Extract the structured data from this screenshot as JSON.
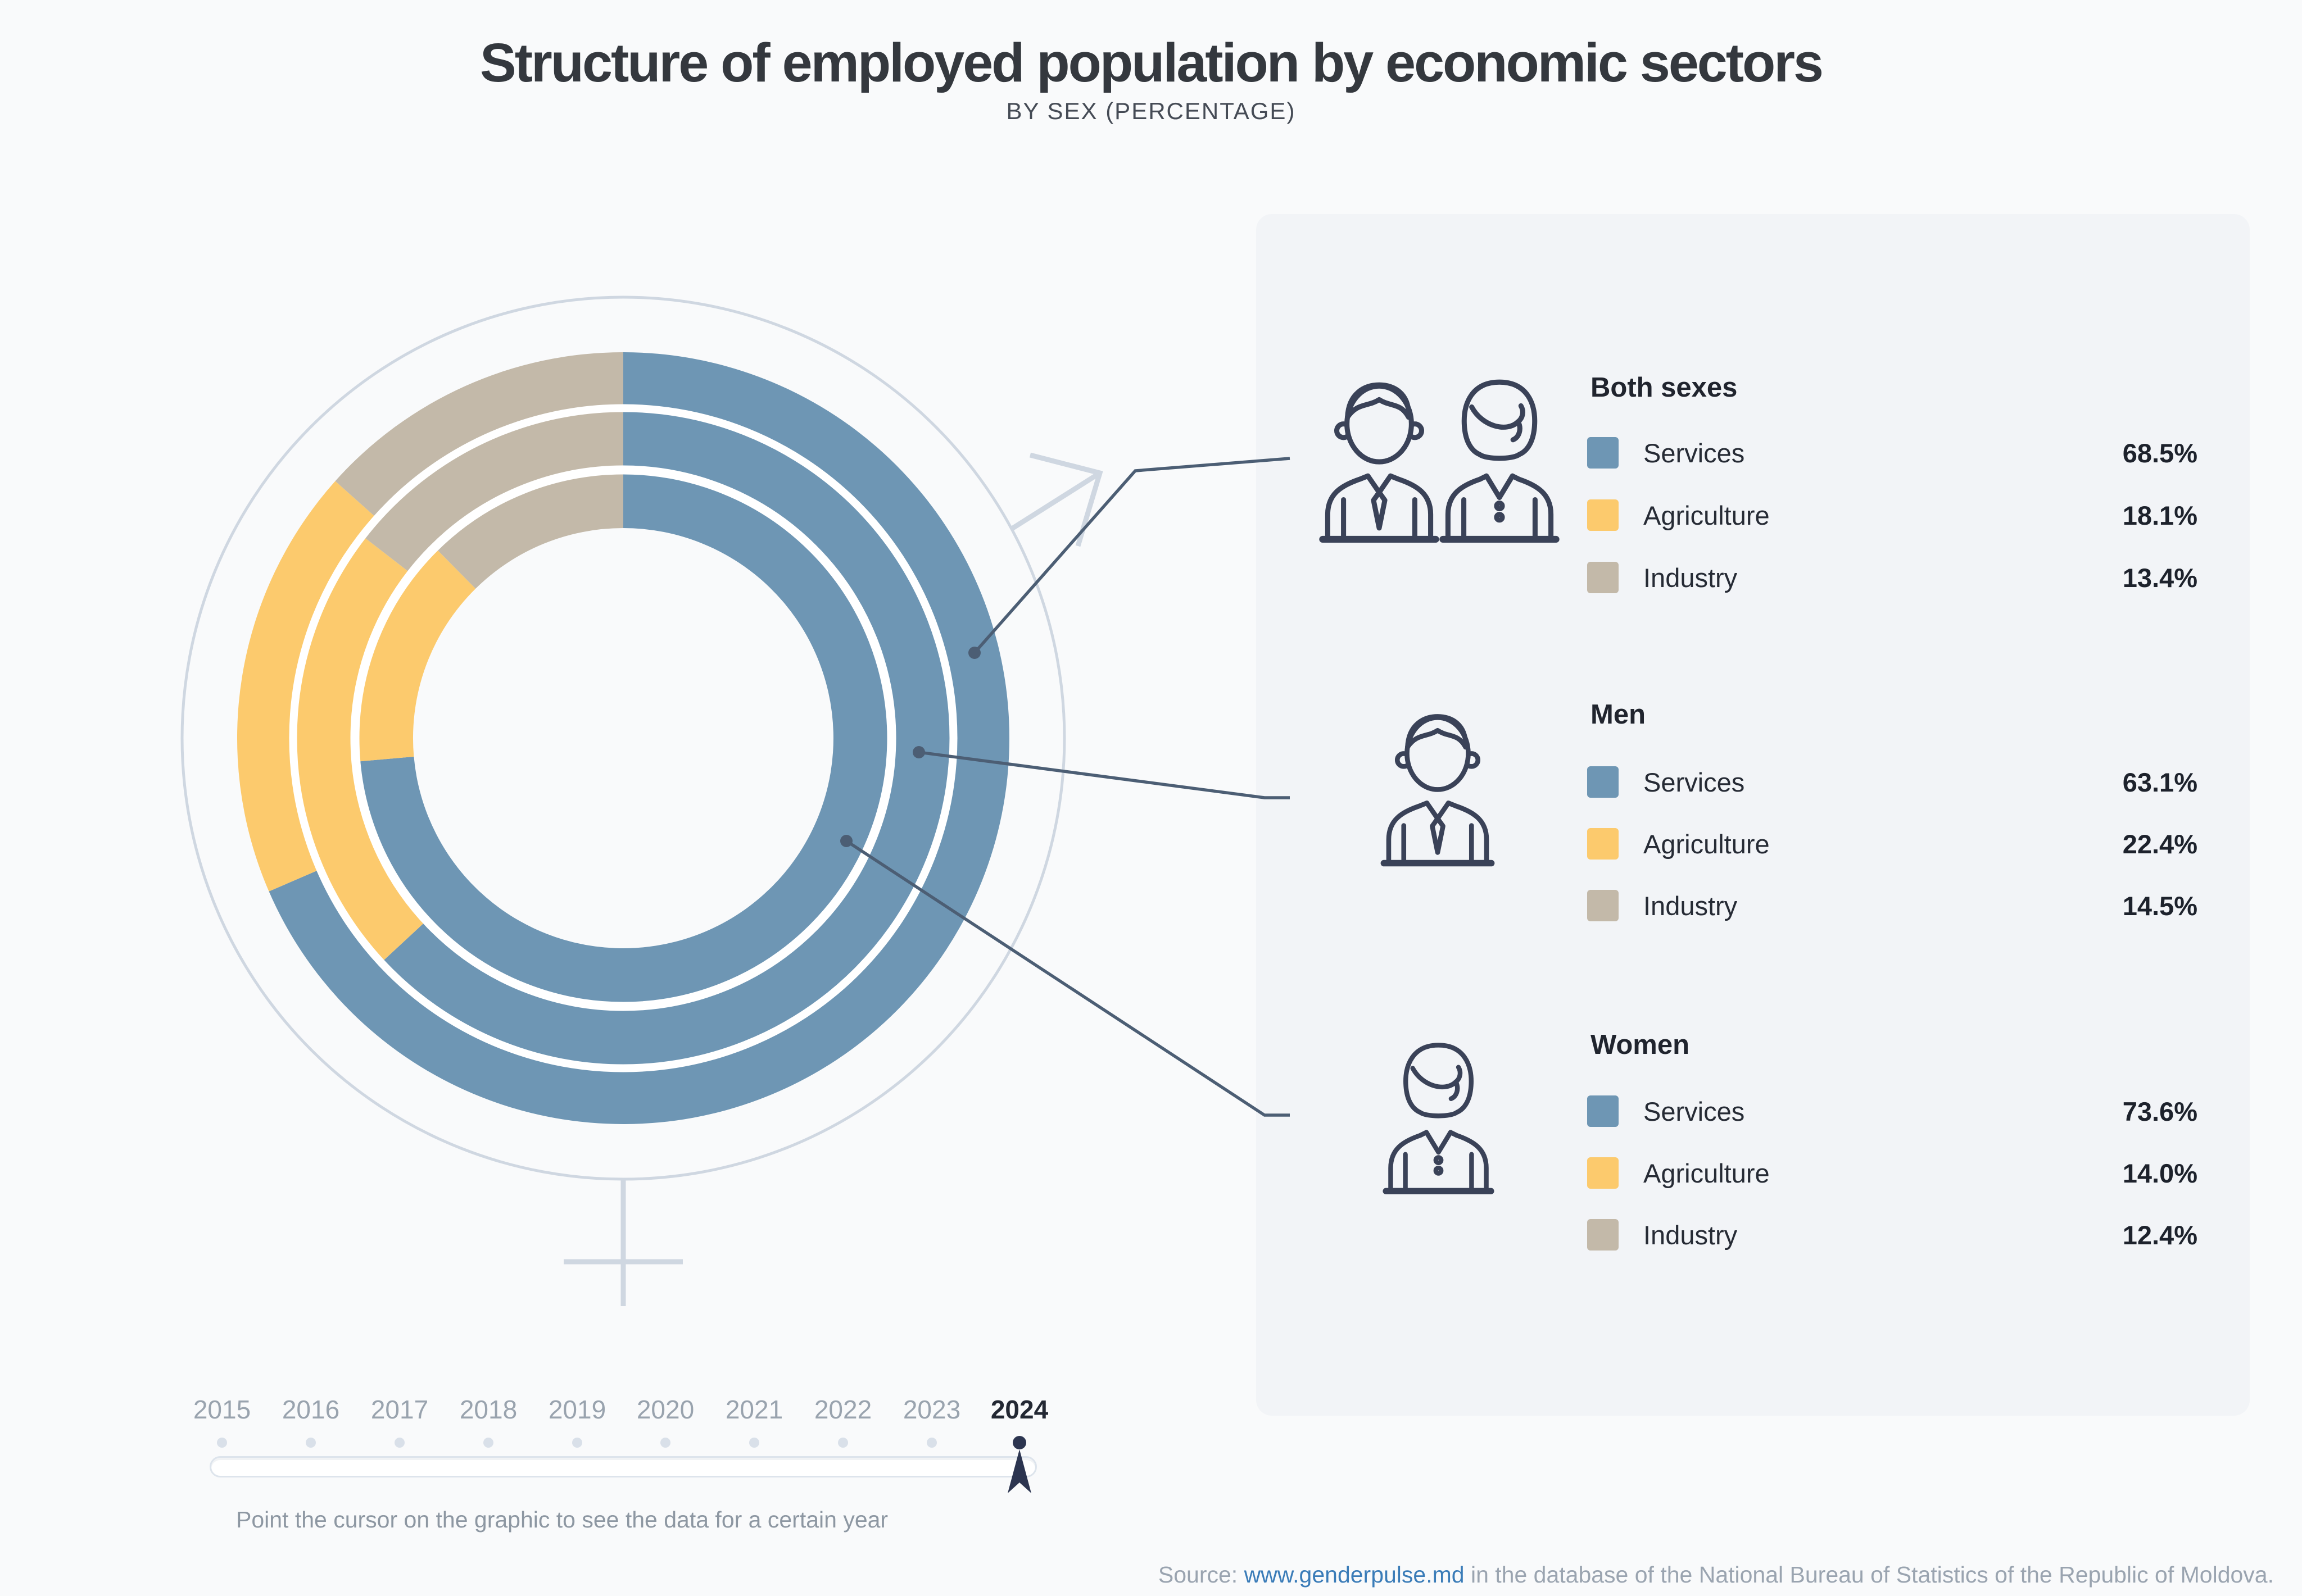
{
  "title": "Structure of employed population by economic sectors",
  "subtitle": "BY SEX (PERCENTAGE)",
  "colors": {
    "services": "#6e96b4",
    "agriculture": "#fcca6d",
    "industry": "#c3b9a9",
    "leader_navy": "#4c5e74",
    "icon_navy": "#3a4258",
    "symbol_light": "#cfd7e1",
    "link_blue": "#3a7cb8"
  },
  "chart_data": {
    "type": "pie",
    "variant": "concentric-donut",
    "title": "Structure of employed population by economic sectors",
    "subtitle": "BY SEX (PERCENTAGE)",
    "year": "2024",
    "start_angle_deg": 0,
    "direction": "clockwise",
    "categories": [
      "Services",
      "Agriculture",
      "Industry"
    ],
    "series": [
      {
        "name": "Both sexes",
        "ring": "outer",
        "values": [
          68.5,
          18.1,
          13.4
        ]
      },
      {
        "name": "Men",
        "ring": "middle",
        "values": [
          63.1,
          22.4,
          14.5
        ]
      },
      {
        "name": "Women",
        "ring": "inner",
        "values": [
          73.6,
          14.0,
          12.4
        ]
      }
    ]
  },
  "legend": {
    "sections": [
      {
        "title": "Both sexes",
        "rows": [
          {
            "label": "Services",
            "value": "68.5%"
          },
          {
            "label": "Agriculture",
            "value": "18.1%"
          },
          {
            "label": "Industry",
            "value": "13.4%"
          }
        ]
      },
      {
        "title": "Men",
        "rows": [
          {
            "label": "Services",
            "value": "63.1%"
          },
          {
            "label": "Agriculture",
            "value": "22.4%"
          },
          {
            "label": "Industry",
            "value": "14.5%"
          }
        ]
      },
      {
        "title": "Women",
        "rows": [
          {
            "label": "Services",
            "value": "73.6%"
          },
          {
            "label": "Agriculture",
            "value": "14.0%"
          },
          {
            "label": "Industry",
            "value": "12.4%"
          }
        ]
      }
    ]
  },
  "slider": {
    "years": [
      "2015",
      "2016",
      "2017",
      "2018",
      "2019",
      "2020",
      "2021",
      "2022",
      "2023",
      "2024"
    ],
    "active_year": "2024",
    "hint": "Point the cursor on the graphic to see the data for a certain year"
  },
  "footer": {
    "source_prefix": "Source: ",
    "source_link": "www.genderpulse.md",
    "source_suffix": " in the database of the National Bureau of Statistics of the Republic of Moldova."
  }
}
